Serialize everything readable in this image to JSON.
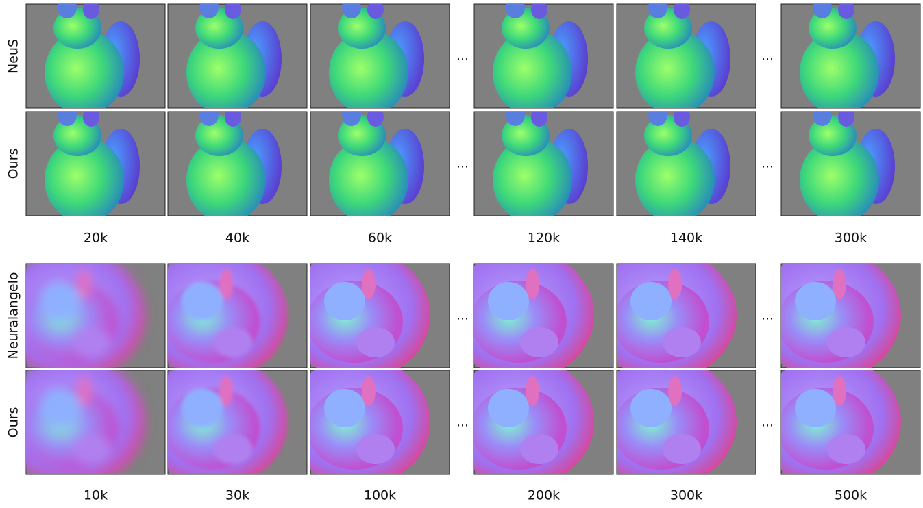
{
  "ellipsis": "...",
  "sections": [
    {
      "rows": [
        "NeuS",
        "Ours"
      ],
      "steps": [
        "20k",
        "40k",
        "60k",
        "120k",
        "140k",
        "300k"
      ]
    },
    {
      "rows": [
        "Neuralangelo",
        "Ours"
      ],
      "steps": [
        "10k",
        "30k",
        "100k",
        "200k",
        "300k",
        "500k"
      ]
    }
  ]
}
